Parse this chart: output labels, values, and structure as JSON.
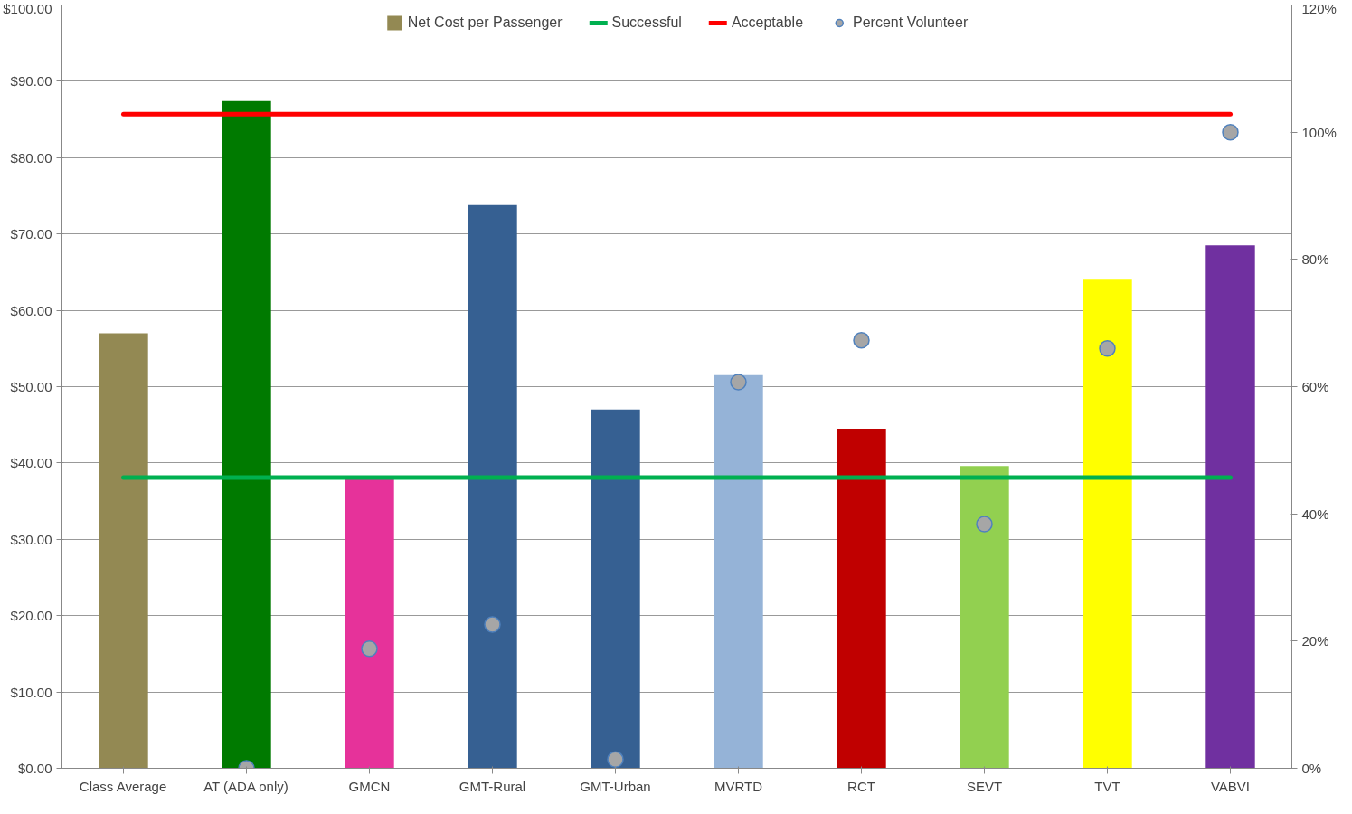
{
  "chart_data": {
    "type": "bar",
    "categories": [
      "Class Average",
      "AT (ADA only)",
      "GMCN",
      "GMT-Rural",
      "GMT-Urban",
      "MVRTD",
      "RCT",
      "SEVT",
      "TVT",
      "VABVI"
    ],
    "series": [
      {
        "name": "Net Cost per Passenger",
        "colors": [
          "#938953",
          "#007a00",
          "#e6329a",
          "#366092",
          "#366092",
          "#95b3d7",
          "#c00000",
          "#92d050",
          "#ffff00",
          "#7030a0"
        ],
        "values": [
          57,
          87.4,
          38,
          73.8,
          47,
          51.5,
          44.5,
          39.6,
          64,
          68.5
        ]
      },
      {
        "name": "Successful",
        "type": "line",
        "color": "#00b050",
        "values": [
          38.1,
          38.1,
          38.1,
          38.1,
          38.1,
          38.1,
          38.1,
          38.1,
          38.1,
          38.1
        ]
      },
      {
        "name": "Acceptable",
        "type": "line",
        "color": "#ff0000",
        "values": [
          85.7,
          85.7,
          85.7,
          85.7,
          85.7,
          85.7,
          85.7,
          85.7,
          85.7,
          85.7
        ]
      },
      {
        "name": "Percent Volunteer",
        "type": "scatter",
        "marker": "circle",
        "axis": "y2",
        "color": "#a6a6a6",
        "values": [
          null,
          0,
          18.8,
          22.6,
          1.4,
          60.7,
          67.3,
          38.4,
          66,
          100
        ]
      }
    ],
    "ylim": [
      0,
      100
    ],
    "yticks": [
      {
        "value": 0,
        "label": "$0.00"
      },
      {
        "value": 10,
        "label": "$10.00"
      },
      {
        "value": 20,
        "label": "$20.00"
      },
      {
        "value": 30,
        "label": "$30.00"
      },
      {
        "value": 40,
        "label": "$40.00"
      },
      {
        "value": 50,
        "label": "$50.00"
      },
      {
        "value": 60,
        "label": "$60.00"
      },
      {
        "value": 70,
        "label": "$70.00"
      },
      {
        "value": 80,
        "label": "$80.00"
      },
      {
        "value": 90,
        "label": "$90.00"
      },
      {
        "value": 100,
        "label": "$100.00"
      }
    ],
    "y2lim": [
      0,
      120
    ],
    "y2ticks": [
      {
        "value": 0,
        "label": "0%"
      },
      {
        "value": 20,
        "label": "20%"
      },
      {
        "value": 40,
        "label": "40%"
      },
      {
        "value": 60,
        "label": "60%"
      },
      {
        "value": 80,
        "label": "80%"
      },
      {
        "value": 100,
        "label": "100%"
      },
      {
        "value": 120,
        "label": "120%"
      }
    ],
    "grid": "y",
    "legend": "top"
  }
}
